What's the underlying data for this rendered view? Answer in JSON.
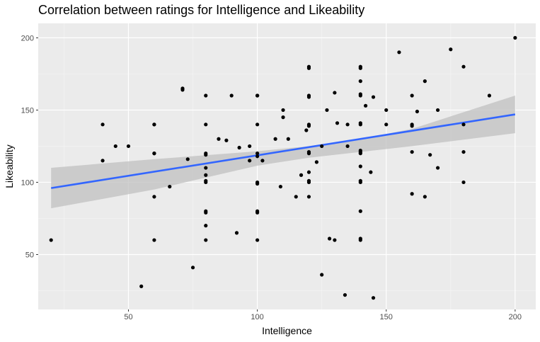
{
  "chart_data": {
    "type": "scatter",
    "title": "Correlation between ratings for Intelligence and Likeability",
    "xlabel": "Intelligence",
    "ylabel": "Likeability",
    "xlim": [
      15,
      208
    ],
    "ylim": [
      12,
      210
    ],
    "x_ticks": [
      50,
      100,
      150,
      200
    ],
    "y_ticks": [
      50,
      100,
      150,
      200
    ],
    "x_tick_labels": [
      "50",
      "100",
      "150",
      "200"
    ],
    "y_tick_labels": [
      "50",
      "100",
      "150",
      "200"
    ],
    "grid": true,
    "background_color": "#ebebeb",
    "point_color": "#000000",
    "fit_line_color": "#3366ff",
    "confidence_band_color": "#c0c0c0",
    "points": [
      [
        20,
        60
      ],
      [
        40,
        140
      ],
      [
        40,
        115
      ],
      [
        45,
        125
      ],
      [
        50,
        125
      ],
      [
        55,
        28
      ],
      [
        60,
        140
      ],
      [
        60,
        140
      ],
      [
        60,
        120
      ],
      [
        60,
        120
      ],
      [
        60,
        90
      ],
      [
        60,
        60
      ],
      [
        66,
        97
      ],
      [
        71,
        165
      ],
      [
        71,
        164
      ],
      [
        73,
        116
      ],
      [
        75,
        41
      ],
      [
        80,
        160
      ],
      [
        80,
        140
      ],
      [
        80,
        120
      ],
      [
        80,
        119
      ],
      [
        80,
        110
      ],
      [
        80,
        105
      ],
      [
        80,
        101
      ],
      [
        80,
        100
      ],
      [
        80,
        80
      ],
      [
        80,
        79
      ],
      [
        80,
        70
      ],
      [
        80,
        60
      ],
      [
        85,
        130
      ],
      [
        88,
        129
      ],
      [
        90,
        160
      ],
      [
        92,
        65
      ],
      [
        93,
        124
      ],
      [
        97,
        125
      ],
      [
        97,
        115
      ],
      [
        100,
        160
      ],
      [
        100,
        160
      ],
      [
        100,
        140
      ],
      [
        100,
        120
      ],
      [
        100,
        118
      ],
      [
        100,
        100
      ],
      [
        100,
        99
      ],
      [
        100,
        80
      ],
      [
        100,
        79
      ],
      [
        100,
        60
      ],
      [
        102,
        115
      ],
      [
        107,
        130
      ],
      [
        109,
        97
      ],
      [
        110,
        150
      ],
      [
        110,
        145
      ],
      [
        112,
        130
      ],
      [
        115,
        90
      ],
      [
        117,
        105
      ],
      [
        119,
        136
      ],
      [
        120,
        180
      ],
      [
        120,
        179
      ],
      [
        120,
        160
      ],
      [
        120,
        159
      ],
      [
        120,
        140
      ],
      [
        120,
        139
      ],
      [
        120,
        121
      ],
      [
        120,
        120
      ],
      [
        120,
        107
      ],
      [
        120,
        101
      ],
      [
        120,
        100
      ],
      [
        120,
        90
      ],
      [
        123,
        114
      ],
      [
        125,
        125
      ],
      [
        125,
        36
      ],
      [
        127,
        150
      ],
      [
        128,
        61
      ],
      [
        130,
        162
      ],
      [
        130,
        60
      ],
      [
        131,
        141
      ],
      [
        134,
        22
      ],
      [
        135,
        140
      ],
      [
        135,
        125
      ],
      [
        140,
        180
      ],
      [
        140,
        179
      ],
      [
        140,
        170
      ],
      [
        140,
        161
      ],
      [
        140,
        160
      ],
      [
        140,
        141
      ],
      [
        140,
        140
      ],
      [
        140,
        122
      ],
      [
        140,
        121
      ],
      [
        140,
        120
      ],
      [
        140,
        111
      ],
      [
        140,
        101
      ],
      [
        140,
        100
      ],
      [
        140,
        80
      ],
      [
        140,
        61
      ],
      [
        140,
        60
      ],
      [
        142,
        153
      ],
      [
        144,
        107
      ],
      [
        145,
        159
      ],
      [
        145,
        20
      ],
      [
        150,
        150
      ],
      [
        150,
        140
      ],
      [
        155,
        190
      ],
      [
        160,
        160
      ],
      [
        160,
        140
      ],
      [
        160,
        139
      ],
      [
        160,
        121
      ],
      [
        160,
        92
      ],
      [
        162,
        149
      ],
      [
        165,
        170
      ],
      [
        165,
        90
      ],
      [
        167,
        119
      ],
      [
        170,
        150
      ],
      [
        170,
        110
      ],
      [
        175,
        192
      ],
      [
        180,
        180
      ],
      [
        180,
        140
      ],
      [
        180,
        121
      ],
      [
        180,
        100
      ],
      [
        190,
        160
      ],
      [
        200,
        200
      ]
    ],
    "fit_line": {
      "x": [
        20,
        200
      ],
      "y": [
        96,
        147
      ]
    },
    "confidence_band": {
      "x": [
        20,
        60,
        100,
        120,
        140,
        160,
        200
      ],
      "upper": [
        110,
        116,
        121.5,
        125,
        130,
        137,
        160
      ],
      "lower": [
        82,
        95,
        111.5,
        117,
        121,
        125,
        134
      ]
    }
  }
}
